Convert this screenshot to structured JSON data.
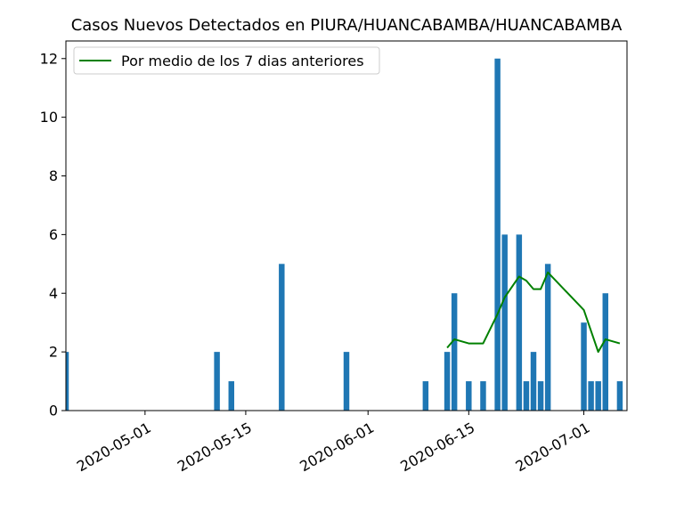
{
  "chart_data": {
    "type": "bar",
    "title": "Casos Nuevos Detectados en PIURA/HUANCABAMBA/HUANCABAMBA",
    "xlabel": "",
    "ylabel": "",
    "xlim": [
      "2020-04-20",
      "2020-07-07"
    ],
    "ylim": [
      0,
      12.6
    ],
    "x_ticks": [
      "2020-05-01",
      "2020-05-15",
      "2020-06-01",
      "2020-06-15",
      "2020-07-01"
    ],
    "y_ticks": [
      "0",
      "2",
      "4",
      "6",
      "8",
      "10",
      "12"
    ],
    "grid": false,
    "legend_position": "top-left",
    "bar_color": "#1f77b4",
    "bars": [
      {
        "date": "2020-04-20",
        "value": 2
      },
      {
        "date": "2020-05-11",
        "value": 2
      },
      {
        "date": "2020-05-13",
        "value": 1
      },
      {
        "date": "2020-05-20",
        "value": 5
      },
      {
        "date": "2020-05-29",
        "value": 2
      },
      {
        "date": "2020-06-09",
        "value": 1
      },
      {
        "date": "2020-06-12",
        "value": 2
      },
      {
        "date": "2020-06-13",
        "value": 4
      },
      {
        "date": "2020-06-15",
        "value": 1
      },
      {
        "date": "2020-06-17",
        "value": 1
      },
      {
        "date": "2020-06-19",
        "value": 12
      },
      {
        "date": "2020-06-20",
        "value": 6
      },
      {
        "date": "2020-06-22",
        "value": 6
      },
      {
        "date": "2020-06-23",
        "value": 1
      },
      {
        "date": "2020-06-24",
        "value": 2
      },
      {
        "date": "2020-06-25",
        "value": 1
      },
      {
        "date": "2020-06-26",
        "value": 5
      },
      {
        "date": "2020-07-01",
        "value": 3
      },
      {
        "date": "2020-07-02",
        "value": 1
      },
      {
        "date": "2020-07-03",
        "value": 1
      },
      {
        "date": "2020-07-04",
        "value": 4
      },
      {
        "date": "2020-07-06",
        "value": 1
      }
    ],
    "series": [
      {
        "name": "Por medio de los 7 dias anteriores",
        "type": "line",
        "color": "#008000",
        "points": [
          {
            "date": "2020-06-12",
            "value": 2.14
          },
          {
            "date": "2020-06-13",
            "value": 2.43
          },
          {
            "date": "2020-06-15",
            "value": 2.29
          },
          {
            "date": "2020-06-17",
            "value": 2.29
          },
          {
            "date": "2020-06-19",
            "value": 3.29
          },
          {
            "date": "2020-06-20",
            "value": 3.86
          },
          {
            "date": "2020-06-22",
            "value": 4.57
          },
          {
            "date": "2020-06-23",
            "value": 4.43
          },
          {
            "date": "2020-06-24",
            "value": 4.14
          },
          {
            "date": "2020-06-25",
            "value": 4.14
          },
          {
            "date": "2020-06-26",
            "value": 4.71
          },
          {
            "date": "2020-07-01",
            "value": 3.43
          },
          {
            "date": "2020-07-03",
            "value": 2.0
          },
          {
            "date": "2020-07-04",
            "value": 2.43
          },
          {
            "date": "2020-07-06",
            "value": 2.29
          }
        ]
      }
    ]
  }
}
